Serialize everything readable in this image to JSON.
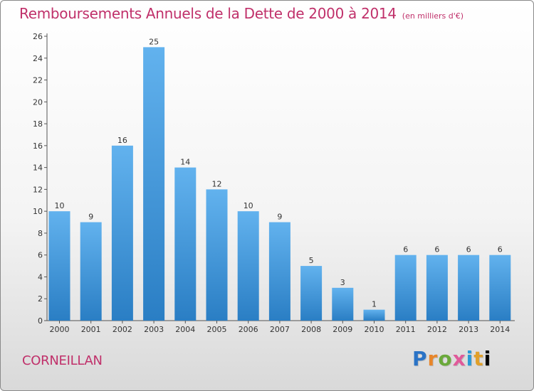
{
  "header": {
    "title": "Remboursements Annuels de la Dette de 2000 à 2014",
    "unit": "(en milliers d'€)"
  },
  "footer": {
    "commune": "CORNEILLAN",
    "logo": [
      "P",
      "r",
      "o",
      "x",
      "i",
      "t",
      "i"
    ]
  },
  "colors": {
    "bar_light": "#62b2ee",
    "bar_dark": "#2a7ec4",
    "title": "#c0306a"
  },
  "chart_data": {
    "type": "bar",
    "categories": [
      "2000",
      "2001",
      "2002",
      "2003",
      "2004",
      "2005",
      "2006",
      "2007",
      "2008",
      "2009",
      "2010",
      "2011",
      "2012",
      "2013",
      "2014"
    ],
    "values": [
      10,
      9,
      16,
      25,
      14,
      12,
      10,
      9,
      5,
      3,
      1,
      6,
      6,
      6,
      6
    ],
    "ylim": [
      0,
      26
    ],
    "yticks": [
      0,
      2,
      4,
      6,
      8,
      10,
      12,
      14,
      16,
      18,
      20,
      22,
      24,
      26
    ],
    "grid": false,
    "data_labels": true
  }
}
